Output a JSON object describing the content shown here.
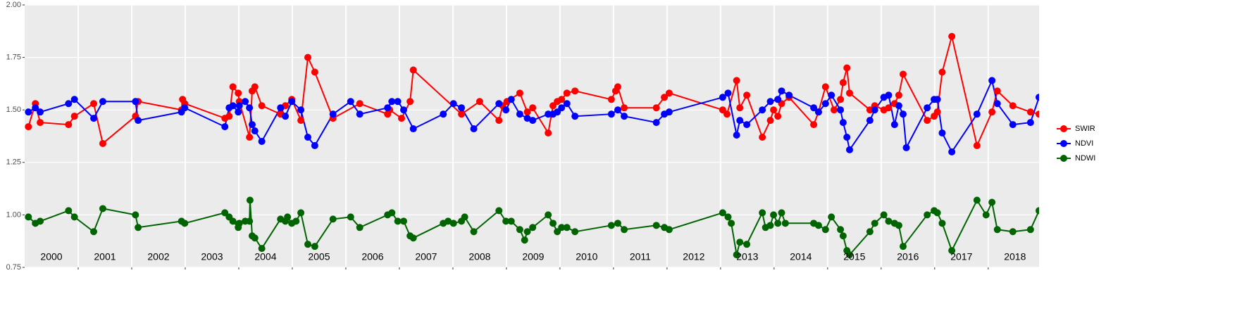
{
  "chart_data": {
    "type": "line",
    "ylim": [
      0.75,
      2.0
    ],
    "yticks": [
      {
        "value": 0.75,
        "label": "0.75"
      },
      {
        "value": 1,
        "label": "1.00"
      },
      1.25,
      {
        "value": 1.5,
        "label": "1.50"
      },
      1.75,
      {
        "value": 2,
        "label": "2.00"
      }
    ],
    "xlim": [
      2000,
      2018.95
    ],
    "xticks": [
      2001,
      2002,
      2003,
      2004,
      2005,
      2006,
      2007,
      2008,
      2009,
      2010,
      2011,
      2012,
      2013,
      2014,
      2015,
      2016,
      2017,
      2018
    ],
    "xlabels": [
      {
        "value": 2000.5,
        "label": "2000"
      },
      {
        "value": 2001.5,
        "label": "2001"
      },
      {
        "value": 2002.5,
        "label": "2002"
      },
      {
        "value": 2003.5,
        "label": "2003"
      },
      {
        "value": 2004.5,
        "label": "2004"
      },
      {
        "value": 2005.5,
        "label": "2005"
      },
      {
        "value": 2006.5,
        "label": "2006"
      },
      {
        "value": 2007.5,
        "label": "2007"
      },
      {
        "value": 2008.5,
        "label": "2008"
      },
      {
        "value": 2009.5,
        "label": "2009"
      },
      {
        "value": 2010.5,
        "label": "2010"
      },
      {
        "value": 2011.5,
        "label": "2011"
      },
      {
        "value": 2012.5,
        "label": "2012"
      },
      {
        "value": 2013.5,
        "label": "2013"
      },
      {
        "value": 2014.5,
        "label": "2014"
      },
      {
        "value": 2015.5,
        "label": "2015"
      },
      {
        "value": 2016.5,
        "label": "2016"
      },
      {
        "value": 2017.5,
        "label": "2017"
      },
      {
        "value": 2018.5,
        "label": "2018"
      }
    ],
    "grid": true,
    "legend": "right",
    "series": [
      {
        "name": "SWIR",
        "color": "#ff0000",
        "x": [
          2000.07,
          2000.2,
          2000.29,
          2000.82,
          2000.93,
          2001.29,
          2001.46,
          2002.07,
          2002.12,
          2002.93,
          2002.95,
          2002.99,
          2003.74,
          2003.82,
          2003.89,
          2003.99,
          2004.01,
          2004.2,
          2004.25,
          2004.3,
          2004.43,
          2004.78,
          2004.87,
          2004.99,
          2005.16,
          2005.29,
          2005.42,
          2005.76,
          2006.26,
          2006.78,
          2006.82,
          2007.04,
          2007.2,
          2007.26,
          2008.16,
          2008.5,
          2008.86,
          2008.93,
          2009.01,
          2009.25,
          2009.39,
          2009.49,
          2009.78,
          2009.87,
          2009.95,
          2010.03,
          2010.13,
          2010.28,
          2010.96,
          2011.04,
          2011.08,
          2011.2,
          2011.8,
          2011.95,
          2012.04,
          2013.04,
          2013.12,
          2013.3,
          2013.36,
          2013.49,
          2013.78,
          2013.93,
          2013.99,
          2014.07,
          2014.14,
          2014.28,
          2014.74,
          2014.83,
          2014.96,
          2015.12,
          2015.24,
          2015.29,
          2015.36,
          2015.41,
          2015.79,
          2015.88,
          2016.05,
          2016.14,
          2016.25,
          2016.33,
          2016.41,
          2016.86,
          2016.99,
          2017.05,
          2017.14,
          2017.32,
          2017.79,
          2018.07,
          2018.17,
          2018.46,
          2018.79,
          2018.95
        ],
        "values": [
          1.42,
          1.53,
          1.44,
          1.43,
          1.47,
          1.53,
          1.34,
          1.47,
          1.54,
          1.5,
          1.55,
          1.53,
          1.46,
          1.47,
          1.61,
          1.58,
          1.54,
          1.37,
          1.59,
          1.61,
          1.52,
          1.48,
          1.52,
          1.55,
          1.45,
          1.75,
          1.68,
          1.46,
          1.53,
          1.48,
          1.5,
          1.46,
          1.54,
          1.69,
          1.48,
          1.54,
          1.45,
          1.52,
          1.54,
          1.58,
          1.49,
          1.51,
          1.39,
          1.52,
          1.54,
          1.55,
          1.58,
          1.59,
          1.55,
          1.59,
          1.61,
          1.51,
          1.51,
          1.56,
          1.58,
          1.5,
          1.48,
          1.64,
          1.51,
          1.57,
          1.37,
          1.45,
          1.5,
          1.47,
          1.53,
          1.56,
          1.43,
          1.49,
          1.61,
          1.5,
          1.55,
          1.63,
          1.7,
          1.58,
          1.5,
          1.52,
          1.5,
          1.51,
          1.53,
          1.57,
          1.67,
          1.45,
          1.47,
          1.49,
          1.68,
          1.85,
          1.33,
          1.49,
          1.59,
          1.52,
          1.49,
          1.48
        ]
      },
      {
        "name": "NDVI",
        "color": "#0000ff",
        "x": [
          2000.07,
          2000.2,
          2000.29,
          2000.82,
          2000.93,
          2001.29,
          2001.46,
          2002.07,
          2002.12,
          2002.93,
          2002.99,
          2003.74,
          2003.82,
          2003.89,
          2003.99,
          2004.01,
          2004.12,
          2004.2,
          2004.25,
          2004.3,
          2004.43,
          2004.78,
          2004.87,
          2004.99,
          2005.16,
          2005.29,
          2005.42,
          2005.76,
          2006.09,
          2006.26,
          2006.78,
          2006.86,
          2006.97,
          2007.08,
          2007.26,
          2007.82,
          2008.01,
          2008.16,
          2008.39,
          2008.86,
          2008.99,
          2009.09,
          2009.25,
          2009.39,
          2009.49,
          2009.78,
          2009.87,
          2009.95,
          2010.03,
          2010.13,
          2010.28,
          2010.96,
          2011.08,
          2011.2,
          2011.8,
          2011.95,
          2012.04,
          2013.04,
          2013.14,
          2013.3,
          2013.36,
          2013.49,
          2013.78,
          2013.93,
          2014.07,
          2014.14,
          2014.28,
          2014.74,
          2014.83,
          2014.96,
          2015.07,
          2015.24,
          2015.29,
          2015.36,
          2015.41,
          2015.79,
          2015.88,
          2016.05,
          2016.14,
          2016.25,
          2016.33,
          2016.41,
          2016.47,
          2016.86,
          2016.99,
          2017.05,
          2017.14,
          2017.32,
          2017.79,
          2018.07,
          2018.17,
          2018.46,
          2018.79,
          2018.95
        ],
        "values": [
          1.49,
          1.51,
          1.49,
          1.53,
          1.55,
          1.46,
          1.54,
          1.54,
          1.45,
          1.49,
          1.51,
          1.42,
          1.51,
          1.52,
          1.49,
          1.52,
          1.54,
          1.51,
          1.43,
          1.4,
          1.35,
          1.51,
          1.47,
          1.54,
          1.5,
          1.37,
          1.33,
          1.48,
          1.54,
          1.48,
          1.51,
          1.54,
          1.54,
          1.5,
          1.41,
          1.48,
          1.53,
          1.51,
          1.41,
          1.53,
          1.5,
          1.55,
          1.48,
          1.46,
          1.45,
          1.48,
          1.48,
          1.49,
          1.51,
          1.53,
          1.47,
          1.48,
          1.5,
          1.47,
          1.44,
          1.48,
          1.49,
          1.56,
          1.58,
          1.38,
          1.45,
          1.43,
          1.5,
          1.54,
          1.55,
          1.59,
          1.57,
          1.51,
          1.49,
          1.53,
          1.57,
          1.5,
          1.44,
          1.37,
          1.31,
          1.45,
          1.5,
          1.56,
          1.57,
          1.43,
          1.52,
          1.48,
          1.32,
          1.51,
          1.55,
          1.55,
          1.39,
          1.3,
          1.48,
          1.64,
          1.53,
          1.43,
          1.44,
          1.56
        ]
      },
      {
        "name": "NDWI",
        "color": "#006400",
        "x": [
          2000.07,
          2000.2,
          2000.29,
          2000.82,
          2000.93,
          2001.29,
          2001.46,
          2002.07,
          2002.12,
          2002.93,
          2002.99,
          2003.74,
          2003.82,
          2003.89,
          2003.99,
          2004.01,
          2004.12,
          2004.2,
          2004.21,
          2004.25,
          2004.3,
          2004.43,
          2004.78,
          2004.87,
          2004.91,
          2004.99,
          2005.07,
          2005.16,
          2005.29,
          2005.42,
          2005.76,
          2006.09,
          2006.26,
          2006.78,
          2006.86,
          2006.97,
          2007.08,
          2007.2,
          2007.26,
          2007.82,
          2007.91,
          2008.01,
          2008.16,
          2008.22,
          2008.39,
          2008.86,
          2008.99,
          2009.09,
          2009.25,
          2009.34,
          2009.39,
          2009.49,
          2009.78,
          2009.87,
          2009.95,
          2010.03,
          2010.13,
          2010.28,
          2010.96,
          2011.08,
          2011.2,
          2011.8,
          2011.95,
          2012.04,
          2013.04,
          2013.14,
          2013.2,
          2013.3,
          2013.36,
          2013.49,
          2013.78,
          2013.84,
          2013.93,
          2013.99,
          2014.07,
          2014.14,
          2014.21,
          2014.74,
          2014.83,
          2014.96,
          2015.07,
          2015.24,
          2015.29,
          2015.36,
          2015.41,
          2015.79,
          2015.88,
          2016.05,
          2016.14,
          2016.25,
          2016.33,
          2016.41,
          2016.86,
          2016.99,
          2017.05,
          2017.14,
          2017.32,
          2017.79,
          2017.96,
          2018.07,
          2018.17,
          2018.46,
          2018.79,
          2018.95
        ],
        "values": [
          0.99,
          0.96,
          0.97,
          1.02,
          0.99,
          0.92,
          1.03,
          1.0,
          0.94,
          0.97,
          0.96,
          1.01,
          0.99,
          0.97,
          0.94,
          0.96,
          0.97,
          0.97,
          1.07,
          0.9,
          0.89,
          0.84,
          0.98,
          0.97,
          0.99,
          0.96,
          0.97,
          1.01,
          0.86,
          0.85,
          0.98,
          0.99,
          0.94,
          1.0,
          1.01,
          0.97,
          0.97,
          0.9,
          0.89,
          0.96,
          0.97,
          0.96,
          0.97,
          0.99,
          0.92,
          1.02,
          0.97,
          0.97,
          0.93,
          0.88,
          0.92,
          0.94,
          1.0,
          0.96,
          0.92,
          0.94,
          0.94,
          0.92,
          0.95,
          0.96,
          0.93,
          0.95,
          0.94,
          0.93,
          1.01,
          0.99,
          0.96,
          0.81,
          0.87,
          0.86,
          1.01,
          0.94,
          0.95,
          1.0,
          0.96,
          1.01,
          0.96,
          0.96,
          0.95,
          0.93,
          0.99,
          0.93,
          0.9,
          0.83,
          0.81,
          0.92,
          0.96,
          1.0,
          0.97,
          0.96,
          0.95,
          0.85,
          1.0,
          1.02,
          1.01,
          0.96,
          0.83,
          1.07,
          1.0,
          1.06,
          0.93,
          0.92,
          0.93,
          1.02
        ]
      }
    ]
  }
}
